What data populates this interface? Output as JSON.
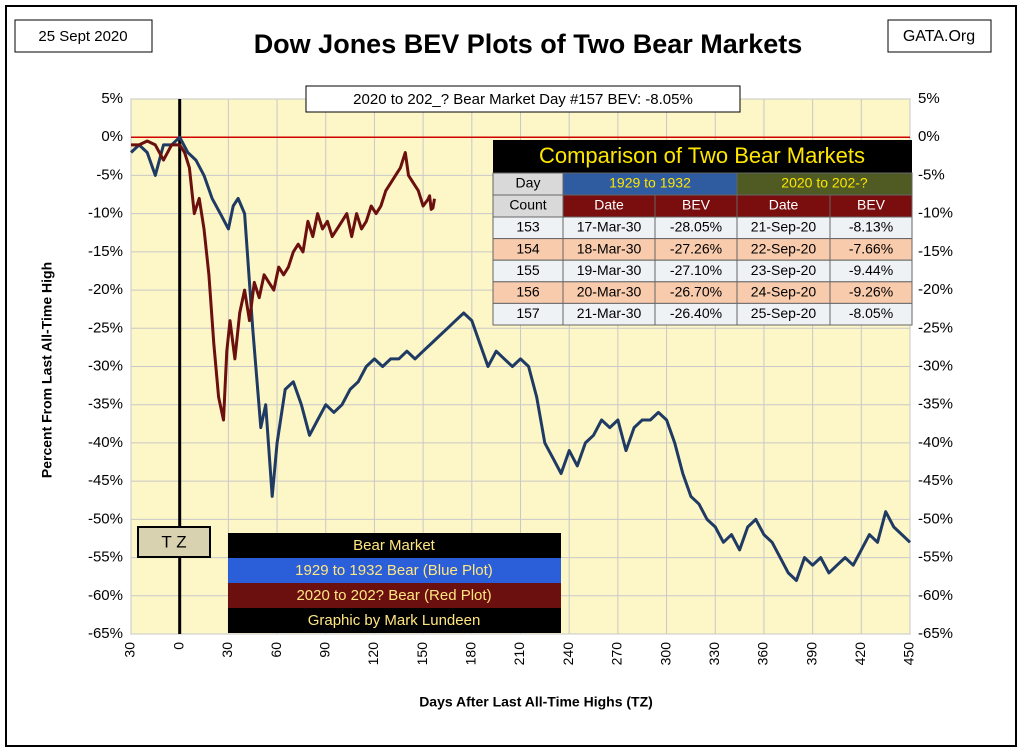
{
  "header": {
    "date": "25 Sept 2020",
    "source": "GATA.Org"
  },
  "annotation": "2020 to 202_? Bear Market Day #157 BEV: -8.05%",
  "tz_label": "T Z",
  "legend_title": "Bear Market",
  "credit": "Graphic by Mark Lundeen",
  "table": {
    "title": "Comparison of Two Bear Markets",
    "group_headers": [
      "Day",
      "1929 to 1932",
      "2020 to 202-?"
    ],
    "sub_headers": [
      "Count",
      "Date",
      "BEV",
      "Date",
      "BEV"
    ],
    "rows": [
      [
        "153",
        "17-Mar-30",
        "-28.05%",
        "21-Sep-20",
        "-8.13%"
      ],
      [
        "154",
        "18-Mar-30",
        "-27.26%",
        "22-Sep-20",
        "-7.66%"
      ],
      [
        "155",
        "19-Mar-30",
        "-27.10%",
        "23-Sep-20",
        "-9.44%"
      ],
      [
        "156",
        "20-Mar-30",
        "-26.70%",
        "24-Sep-20",
        "-9.26%"
      ],
      [
        "157",
        "21-Mar-30",
        "-26.40%",
        "25-Sep-20",
        "-8.05%"
      ]
    ]
  },
  "chart_data": {
    "type": "line",
    "title": "Dow Jones BEV Plots of Two Bear Markets",
    "x_label": "Days After Last All-Time Highs (TZ)",
    "y_label": "Percent From Last All-Time High",
    "xlim": [
      -30,
      450
    ],
    "ylim": [
      -65,
      5
    ],
    "grid": true,
    "xticks": [
      {
        "value": -30,
        "label": "30"
      },
      0,
      30,
      60,
      90,
      120,
      150,
      180,
      210,
      240,
      270,
      300,
      330,
      360,
      390,
      420,
      450
    ],
    "yticks": [
      {
        "value": 5,
        "label": "5%"
      },
      {
        "value": 0,
        "label": "0%"
      },
      {
        "value": -5,
        "label": "-5%"
      },
      {
        "value": -10,
        "label": "-10%"
      },
      {
        "value": -15,
        "label": "-15%"
      },
      {
        "value": -20,
        "label": "-20%"
      },
      {
        "value": -25,
        "label": "-25%"
      },
      {
        "value": -30,
        "label": "-30%"
      },
      {
        "value": -35,
        "label": "-35%"
      },
      {
        "value": -40,
        "label": "-40%"
      },
      {
        "value": -45,
        "label": "-45%"
      },
      {
        "value": -50,
        "label": "-50%"
      },
      {
        "value": -55,
        "label": "-55%"
      },
      {
        "value": -60,
        "label": "-60%"
      },
      {
        "value": -65,
        "label": "-65%"
      }
    ],
    "series": [
      {
        "name": "1929 to 1932 Bear (Blue Plot)",
        "color": "#1f3b64",
        "x": [
          -30,
          -25,
          -20,
          -15,
          -10,
          -5,
          0,
          5,
          10,
          15,
          20,
          25,
          30,
          33,
          36,
          40,
          45,
          50,
          53,
          57,
          60,
          65,
          70,
          75,
          80,
          85,
          90,
          95,
          100,
          105,
          110,
          115,
          120,
          125,
          130,
          135,
          140,
          145,
          150,
          155,
          160,
          165,
          170,
          175,
          180,
          185,
          190,
          195,
          200,
          205,
          210,
          215,
          220,
          225,
          230,
          235,
          240,
          245,
          250,
          255,
          260,
          265,
          270,
          275,
          280,
          285,
          290,
          295,
          300,
          305,
          310,
          315,
          320,
          325,
          330,
          335,
          340,
          345,
          350,
          355,
          360,
          365,
          370,
          375,
          380,
          385,
          390,
          395,
          400,
          405,
          410,
          415,
          420,
          425,
          430,
          435,
          440,
          445,
          450
        ],
        "values": [
          -2,
          -1,
          -2,
          -5,
          -1,
          -1,
          0,
          -2,
          -3,
          -5,
          -8,
          -10,
          -12,
          -9,
          -8,
          -10,
          -25,
          -38,
          -35,
          -47,
          -40,
          -33,
          -32,
          -35,
          -39,
          -37,
          -35,
          -36,
          -35,
          -33,
          -32,
          -30,
          -29,
          -30,
          -29,
          -29,
          -28,
          -29,
          -28,
          -27,
          -26,
          -25,
          -24,
          -23,
          -24,
          -27,
          -30,
          -28,
          -29,
          -30,
          -29,
          -30,
          -34,
          -40,
          -42,
          -44,
          -41,
          -43,
          -40,
          -39,
          -37,
          -38,
          -37,
          -41,
          -38,
          -37,
          -37,
          -36,
          -37,
          -40,
          -44,
          -47,
          -48,
          -50,
          -51,
          -53,
          -52,
          -54,
          -51,
          -50,
          -52,
          -53,
          -55,
          -57,
          -58,
          -55,
          -56,
          -55,
          -57,
          -56,
          -55,
          -56,
          -54,
          -52,
          -53,
          -49,
          -51,
          -52,
          -53
        ]
      },
      {
        "name": "2020 to 202? Bear (Red Plot)",
        "color": "#6b0f0f",
        "x": [
          -30,
          -25,
          -20,
          -15,
          -10,
          -5,
          0,
          3,
          6,
          9,
          12,
          15,
          18,
          21,
          24,
          27,
          29,
          31,
          34,
          37,
          40,
          43,
          46,
          49,
          52,
          55,
          58,
          61,
          64,
          67,
          70,
          73,
          76,
          79,
          82,
          85,
          88,
          91,
          94,
          97,
          100,
          103,
          106,
          109,
          112,
          115,
          118,
          121,
          124,
          127,
          130,
          133,
          136,
          139,
          141,
          144,
          147,
          150,
          153,
          154,
          155,
          156,
          157
        ],
        "values": [
          -1,
          -1,
          -0.5,
          -1,
          -3,
          -1,
          -1,
          -2,
          -4,
          -10,
          -8,
          -12,
          -18,
          -27,
          -34,
          -37,
          -28,
          -24,
          -29,
          -23,
          -20,
          -24,
          -19,
          -21,
          -18,
          -19,
          -20,
          -17,
          -18,
          -17,
          -15,
          -14,
          -15,
          -11,
          -13,
          -10,
          -12,
          -11,
          -13,
          -12,
          -11,
          -10,
          -13,
          -10,
          -12,
          -11,
          -9,
          -10,
          -9,
          -7,
          -6,
          -5,
          -4,
          -2,
          -5,
          -6,
          -7,
          -9,
          -8.13,
          -7.66,
          -9.44,
          -9.26,
          -8.05
        ]
      }
    ]
  }
}
